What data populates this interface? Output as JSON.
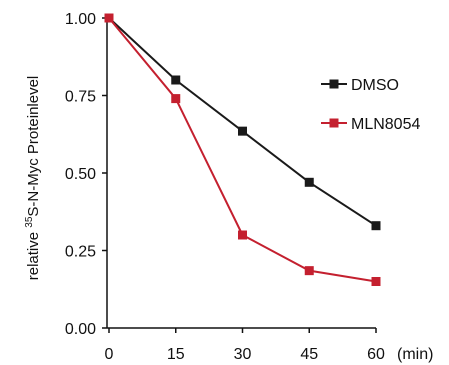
{
  "chart_data": {
    "type": "line",
    "title": "",
    "xlabel": "",
    "x_unit": "(min)",
    "ylabel": {
      "prefix": "relative ",
      "superscript": "35",
      "main": "S-N-Myc  Proteinlevel"
    },
    "x": [
      0,
      15,
      30,
      45,
      60
    ],
    "x_ticks": [
      "0",
      "15",
      "30",
      "45",
      "60"
    ],
    "xlim": [
      0,
      60
    ],
    "ylim": [
      0,
      1.0
    ],
    "y_ticks": [
      "0.00",
      "0.25",
      "0.50",
      "0.75",
      "1.00"
    ],
    "grid": false,
    "legend_position": "right",
    "series": [
      {
        "name": "DMSO",
        "color": "#1a1a1a",
        "marker": "square",
        "values": [
          1.0,
          0.8,
          0.635,
          0.47,
          0.33
        ]
      },
      {
        "name": "MLN8054",
        "color": "#c4202f",
        "marker": "square",
        "values": [
          1.0,
          0.74,
          0.3,
          0.185,
          0.15
        ]
      }
    ]
  }
}
